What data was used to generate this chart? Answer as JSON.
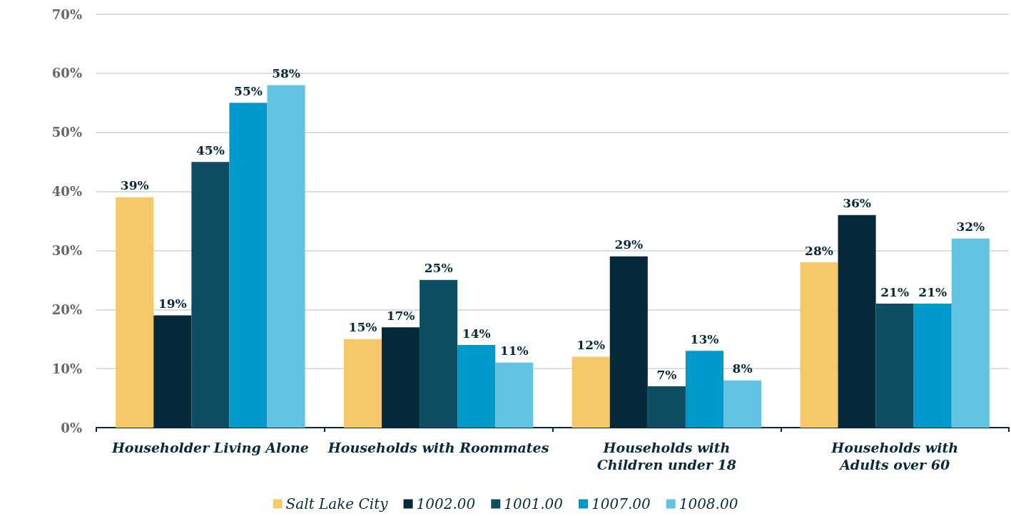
{
  "chart_data": {
    "type": "bar",
    "categories": [
      "Householder Living Alone",
      "Households with Roommates",
      "Households with\nChildren under 18",
      "Households with\nAdults over 60"
    ],
    "series": [
      {
        "name": "Salt Lake City",
        "color": "#f5c96a",
        "values": [
          39,
          15,
          12,
          28
        ],
        "value_labels": [
          "39%",
          "15%",
          "12%",
          "28%"
        ]
      },
      {
        "name": "1002.00",
        "color": "#062a3a",
        "values": [
          19,
          17,
          29,
          36
        ],
        "value_labels": [
          "19%",
          "17%",
          "29%",
          "36%"
        ]
      },
      {
        "name": "1001.00",
        "color": "#0e4d63",
        "values": [
          45,
          25,
          7,
          21
        ],
        "value_labels": [
          "45%",
          "25%",
          "7%",
          "21%"
        ]
      },
      {
        "name": "1007.00",
        "color": "#0099cc",
        "values": [
          55,
          14,
          13,
          21
        ],
        "value_labels": [
          "55%",
          "14%",
          "13%",
          "21%"
        ]
      },
      {
        "name": "1008.00",
        "color": "#63c3e3",
        "values": [
          58,
          11,
          8,
          32
        ],
        "value_labels": [
          "58%",
          "11%",
          "8%",
          "32%"
        ]
      }
    ],
    "ylim": [
      0,
      70
    ],
    "yticks": [
      {
        "value": 0,
        "label": "0%"
      },
      {
        "value": 10,
        "label": "10%"
      },
      {
        "value": 20,
        "label": "20%"
      },
      {
        "value": 30,
        "label": "30%"
      },
      {
        "value": 40,
        "label": "40%"
      },
      {
        "value": 50,
        "label": "50%"
      },
      {
        "value": 60,
        "label": "60%"
      },
      {
        "value": 70,
        "label": "70%"
      }
    ],
    "grid": "y",
    "legend": "bottom"
  }
}
